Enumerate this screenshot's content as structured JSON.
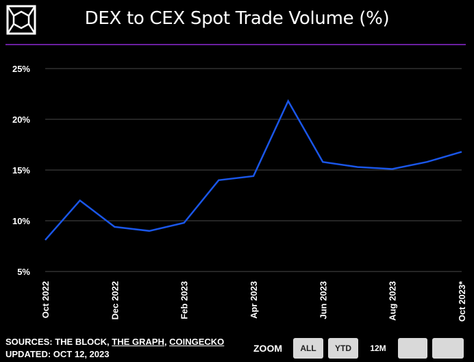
{
  "header": {
    "logo": "the-block-cube-logo",
    "title": "DEX to CEX Spot Trade Volume (%)"
  },
  "colors": {
    "background": "#000000",
    "line": "#1a56e8",
    "divider": "#6a1fa0",
    "grid": "#4a4a4a"
  },
  "chart_data": {
    "type": "line",
    "title": "DEX to CEX Spot Trade Volume (%)",
    "xlabel": "",
    "ylabel": "",
    "ylim": [
      5,
      25
    ],
    "yticks": [
      "5%",
      "10%",
      "15%",
      "20%",
      "25%"
    ],
    "ytick_values": [
      5,
      10,
      15,
      20,
      25
    ],
    "xtick_labels": [
      "Oct 2022",
      "Dec 2022",
      "Feb 2023",
      "Apr 2023",
      "Jun 2023",
      "Aug 2023",
      "Oct 2023*"
    ],
    "xtick_indices": [
      0,
      2,
      4,
      6,
      8,
      10,
      12
    ],
    "x": [
      "2022-10",
      "2022-11",
      "2022-12",
      "2023-01",
      "2023-02",
      "2023-03",
      "2023-04",
      "2023-05",
      "2023-06",
      "2023-07",
      "2023-08",
      "2023-09",
      "2023-10"
    ],
    "series": [
      {
        "values": [
          8.1,
          12.0,
          9.4,
          9.0,
          9.8,
          14.0,
          14.4,
          21.8,
          15.8,
          15.3,
          15.1,
          15.8,
          16.8
        ]
      }
    ],
    "grid": true
  },
  "footer": {
    "sources_prefix": "SOURCES: THE BLOCK, ",
    "source_link_1": "THE GRAPH",
    "sources_sep": ", ",
    "source_link_2": "COINGECKO",
    "updated": "UPDATED: OCT 12, 2023"
  },
  "zoom": {
    "label": "ZOOM",
    "buttons": [
      {
        "label": "ALL",
        "active": false
      },
      {
        "label": "YTD",
        "active": false
      },
      {
        "label": "12M",
        "active": true
      },
      {
        "label": "",
        "active": false
      },
      {
        "label": "",
        "active": false
      }
    ]
  }
}
